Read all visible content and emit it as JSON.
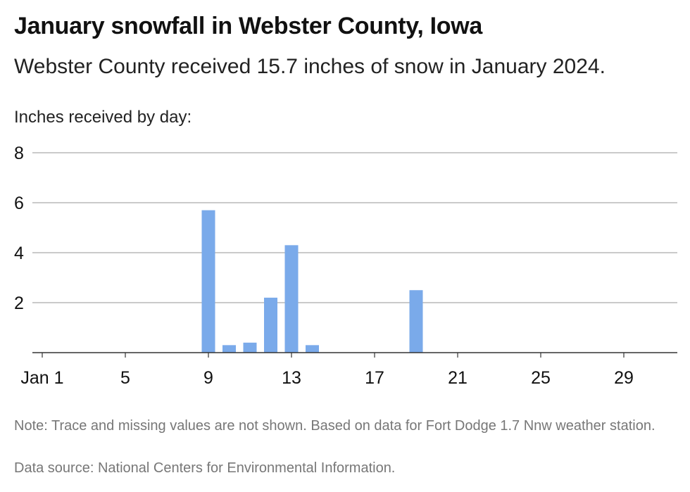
{
  "title": "January snowfall in Webster County, Iowa",
  "subtitle": "Webster County received 15.7 inches of snow in January 2024.",
  "note": "Note: Trace and missing values are not shown. Based on data for Fort Dodge 1.7 Nnw weather station.",
  "source": "Data source: National Centers for Environmental Information.",
  "colors": {
    "bar": "#7aaaea",
    "grid": "#aaaaaa",
    "axis": "#333333"
  },
  "chart_data": {
    "type": "bar",
    "title": "January snowfall in Webster County, Iowa",
    "ylabel": "Inches received by day:",
    "xlabel": "",
    "ylim": [
      0,
      8
    ],
    "yticks": [
      2,
      4,
      6,
      8
    ],
    "xlim": [
      1,
      31
    ],
    "xticks": [
      {
        "day": 1,
        "label": "Jan 1"
      },
      {
        "day": 5,
        "label": "5"
      },
      {
        "day": 9,
        "label": "9"
      },
      {
        "day": 13,
        "label": "13"
      },
      {
        "day": 17,
        "label": "17"
      },
      {
        "day": 21,
        "label": "21"
      },
      {
        "day": 25,
        "label": "25"
      },
      {
        "day": 29,
        "label": "29"
      }
    ],
    "grid": true,
    "x": [
      9,
      10,
      11,
      12,
      13,
      14,
      19
    ],
    "values": [
      5.7,
      0.3,
      0.4,
      2.2,
      4.3,
      0.3,
      2.5
    ]
  }
}
